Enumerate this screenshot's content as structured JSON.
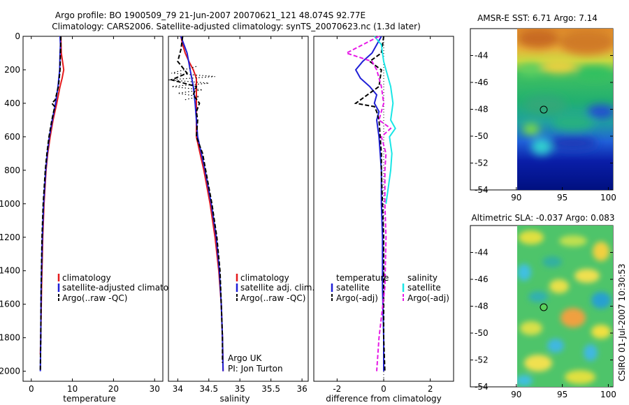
{
  "figure": {
    "title_line1": "Argo profile: BO 1900509_79 21-Jun-2007 20070621_121 48.074S 92.77E",
    "title_line2": "Climatology: CARS2006. Satellite-adjusted climatology: synTS_20070623.nc (1.3d later)",
    "footer": "CSIRO 01-Jul-2007 10:30:53"
  },
  "colors": {
    "climatology": "#e41a1c",
    "satellite": "#1f1fd6",
    "argo": "#000000",
    "sal_satellite": "#19e6e6",
    "sal_argo": "#e619e6"
  },
  "chart_data": [
    {
      "id": "temperature",
      "type": "line",
      "xlabel": "temperature",
      "ylabel": "",
      "xlim": [
        -2,
        32
      ],
      "ylim": [
        2060,
        0
      ],
      "xticks": [
        "0",
        "10",
        "20",
        "30"
      ],
      "xtick_values": [
        0,
        10,
        20,
        30
      ],
      "yticks": [
        "0",
        "200",
        "400",
        "600",
        "800",
        "1000",
        "1200",
        "1400",
        "1600",
        "1800",
        "2000"
      ],
      "ytick_values": [
        0,
        200,
        400,
        600,
        800,
        1000,
        1200,
        1400,
        1600,
        1800,
        2000
      ],
      "legend": [
        "climatology",
        "satellite-adjusted climatology",
        "Argo(..raw -QC)"
      ],
      "legend_position": "lower-middle",
      "series": [
        {
          "name": "climatology",
          "style": "solid",
          "color": "#e41a1c",
          "depth": [
            0,
            100,
            150,
            200,
            250,
            300,
            400,
            500,
            600,
            700,
            800,
            1000,
            1200,
            1500,
            1800,
            1900
          ],
          "values": [
            7.2,
            7.3,
            7.6,
            7.9,
            7.5,
            7.0,
            6.2,
            5.3,
            4.6,
            4.0,
            3.6,
            3.1,
            2.8,
            2.5,
            2.3,
            2.2
          ]
        },
        {
          "name": "satellite-adjusted climatology",
          "style": "solid",
          "color": "#1f1fd6",
          "depth": [
            0,
            50,
            100,
            200,
            300,
            400,
            500,
            600,
            700,
            800,
            1000,
            1200,
            1500,
            1800,
            2000
          ],
          "values": [
            7.0,
            7.1,
            7.0,
            6.9,
            6.5,
            5.9,
            5.1,
            4.4,
            3.9,
            3.5,
            3.0,
            2.7,
            2.4,
            2.3,
            2.2
          ]
        },
        {
          "name": "Argo(..raw -QC)",
          "style": "dashed",
          "color": "#000000",
          "depth": [
            0,
            100,
            200,
            300,
            380,
            400,
            420,
            500,
            600,
            700,
            800,
            1000,
            1200,
            1500,
            1800,
            2000
          ],
          "values": [
            7.2,
            7.1,
            7.0,
            6.6,
            5.8,
            5.0,
            5.7,
            5.0,
            4.3,
            3.8,
            3.4,
            2.9,
            2.6,
            2.4,
            2.3,
            2.2
          ]
        }
      ]
    },
    {
      "id": "salinity",
      "type": "line",
      "xlabel": "salinity",
      "ylabel": "",
      "xlim": [
        33.85,
        36.1
      ],
      "ylim": [
        2060,
        0
      ],
      "xticks": [
        "34",
        "34.5",
        "35",
        "35.5",
        "36"
      ],
      "xtick_values": [
        34,
        34.5,
        35,
        35.5,
        36
      ],
      "legend": [
        "climatology",
        "satellite adj. clim.",
        "Argo(..raw -QC)"
      ],
      "legend_position": "lower-right",
      "annotations": [
        "Argo UK",
        "PI: Jon Turton"
      ],
      "series": [
        {
          "name": "climatology",
          "style": "solid",
          "color": "#e41a1c",
          "depth": [
            0,
            50,
            100,
            150,
            200,
            250,
            300,
            400,
            500,
            600,
            700,
            800,
            1000,
            1200,
            1400,
            1600,
            1800,
            2000
          ],
          "values": [
            34.05,
            34.08,
            34.12,
            34.18,
            34.25,
            34.3,
            34.3,
            34.3,
            34.3,
            34.3,
            34.36,
            34.42,
            34.52,
            34.6,
            34.66,
            34.7,
            34.72,
            34.73
          ]
        },
        {
          "name": "satellite adj. clim.",
          "style": "solid",
          "color": "#1f1fd6",
          "depth": [
            0,
            100,
            200,
            300,
            400,
            500,
            600,
            700,
            800,
            1000,
            1200,
            1400,
            1600,
            1800,
            2000
          ],
          "values": [
            34.05,
            34.15,
            34.2,
            34.25,
            34.28,
            34.3,
            34.32,
            34.38,
            34.44,
            34.54,
            34.62,
            34.67,
            34.7,
            34.72,
            34.73
          ]
        },
        {
          "name": "Argo(..raw -QC)",
          "style": "dashed",
          "color": "#000000",
          "depth": [
            0,
            80,
            150,
            220,
            260,
            300,
            350,
            400,
            450,
            500,
            600,
            700,
            800,
            1000,
            1200,
            1400,
            1600,
            1800,
            1950
          ],
          "values": [
            34.08,
            34.05,
            34.0,
            34.15,
            33.9,
            34.3,
            34.25,
            34.35,
            34.3,
            34.32,
            34.3,
            34.4,
            34.45,
            34.55,
            34.63,
            34.68,
            34.7,
            34.72,
            34.72
          ]
        },
        {
          "name": "",
          "style": "dotted",
          "color": "#000000",
          "depth": [
            180,
            220,
            240,
            260,
            280,
            300,
            320,
            340,
            360,
            380
          ],
          "values": [
            34.3,
            33.9,
            34.6,
            33.85,
            34.5,
            33.9,
            34.4,
            34.0,
            34.35,
            34.1
          ]
        }
      ]
    },
    {
      "id": "difference",
      "type": "line",
      "xlabel": "difference from climatology",
      "ylabel": "",
      "xlim": [
        -3.0,
        3.0
      ],
      "ylim": [
        2060,
        0
      ],
      "xticks": [
        "-2",
        "0",
        "2"
      ],
      "xtick_values": [
        -2,
        0,
        2
      ],
      "legend": [
        "temperature",
        "satellite",
        "Argo(-adj)",
        "salinity",
        "satellite",
        "Argo(-adj)"
      ],
      "legend_position": "lower-middle",
      "series": [
        {
          "name": "temperature satellite",
          "style": "solid",
          "color": "#1f1fd6",
          "depth": [
            0,
            50,
            100,
            150,
            200,
            250,
            300,
            350,
            400,
            450,
            500,
            600,
            700,
            800,
            1000,
            1200,
            1500,
            1800,
            2000
          ],
          "values": [
            -0.1,
            -0.3,
            -0.5,
            -0.9,
            -1.2,
            -1.0,
            -0.6,
            -0.3,
            -0.4,
            -0.2,
            -0.3,
            -0.2,
            -0.15,
            -0.1,
            -0.1,
            -0.05,
            -0.05,
            0.0,
            0.0
          ]
        },
        {
          "name": "temperature Argo(-adj)",
          "style": "dashed",
          "color": "#000000",
          "depth": [
            0,
            100,
            150,
            200,
            300,
            380,
            400,
            420,
            450,
            500,
            600,
            700,
            800,
            1000,
            1200,
            1500,
            1800,
            2000
          ],
          "values": [
            0.0,
            -0.1,
            -0.6,
            -0.1,
            -0.2,
            -1.0,
            -1.2,
            -0.4,
            -0.3,
            -0.2,
            -0.15,
            -0.1,
            -0.1,
            -0.05,
            0.0,
            0.0,
            0.0,
            0.05
          ]
        },
        {
          "name": "salinity satellite",
          "style": "solid",
          "color": "#19e6e6",
          "depth": [
            0,
            50,
            100,
            150,
            200,
            300,
            400,
            500,
            550,
            600,
            700,
            800,
            900,
            1000
          ],
          "values": [
            -0.4,
            -0.1,
            -0.05,
            0.0,
            0.1,
            0.3,
            0.4,
            0.3,
            0.5,
            0.25,
            0.35,
            0.3,
            0.2,
            0.1
          ]
        },
        {
          "name": "salinity Argo(-adj)",
          "style": "dashed",
          "color": "#e619e6",
          "depth": [
            0,
            100,
            150,
            200,
            300,
            400,
            500,
            550,
            600,
            700,
            800,
            1000,
            1200,
            1500,
            1800,
            2000
          ],
          "values": [
            -0.2,
            -1.6,
            -0.5,
            -0.3,
            -0.1,
            0.0,
            -0.2,
            0.3,
            -0.1,
            0.1,
            0.05,
            0.05,
            0.1,
            0.05,
            -0.2,
            -0.3
          ]
        }
      ]
    },
    {
      "id": "sst_map",
      "type": "heatmap",
      "title": "AMSR-E SST: 6.71 Argo: 7.14",
      "xlim": [
        85,
        100.5
      ],
      "ylim": [
        -54,
        -42
      ],
      "xticks": [
        "90",
        "95",
        "100"
      ],
      "xtick_values": [
        90,
        95,
        100
      ],
      "yticks": [
        "-44",
        "-46",
        "-48",
        "-50",
        "-52",
        "-54"
      ],
      "ytick_values": [
        -44,
        -46,
        -48,
        -50,
        -52,
        -54
      ],
      "data_extent": {
        "lon": [
          90,
          100.5
        ],
        "lat": [
          -54,
          -42
        ]
      },
      "marker": {
        "lon": 92.77,
        "lat": -48.074
      }
    },
    {
      "id": "sla_map",
      "type": "heatmap",
      "title": "Altimetric SLA: -0.037 Argo: 0.083",
      "xlim": [
        85,
        100.5
      ],
      "ylim": [
        -54,
        -42
      ],
      "xticks": [
        "90",
        "95",
        "100"
      ],
      "xtick_values": [
        90,
        95,
        100
      ],
      "yticks": [
        "-44",
        "-46",
        "-48",
        "-50",
        "-52",
        "-54"
      ],
      "ytick_values": [
        -44,
        -46,
        -48,
        -50,
        -52,
        -54
      ],
      "data_extent": {
        "lon": [
          90,
          100.5
        ],
        "lat": [
          -54,
          -42
        ]
      },
      "marker": {
        "lon": 92.77,
        "lat": -48.074
      }
    }
  ]
}
